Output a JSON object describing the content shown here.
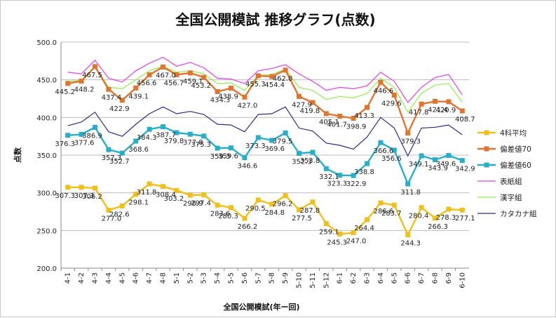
{
  "chart_data": {
    "type": "line",
    "title": "全国公開模試 推移グラフ(点数)",
    "xlabel": "全国公開模試(年ー回)",
    "ylabel": "点数",
    "ylim": [
      200,
      500
    ],
    "yticks": [
      "200.0",
      "250.0",
      "300.0",
      "350.0",
      "400.0",
      "450.0",
      "500.0"
    ],
    "grid": true,
    "legend_position": "right",
    "categories": [
      "4-1",
      "4-2",
      "4-3",
      "4-4",
      "4-5",
      "4-6",
      "4-7",
      "4-8",
      "5-1",
      "5-2",
      "5-3",
      "5-4",
      "5-5",
      "5-6",
      "5-7",
      "5-8",
      "5-9",
      "5-10",
      "5-11",
      "5-12",
      "6-1",
      "6-2",
      "6-3",
      "6-4",
      "6-5",
      "6-6",
      "6-7",
      "6-8",
      "6-9",
      "6-10"
    ],
    "series": [
      {
        "name": "4科平均",
        "color": "#f2bf1a",
        "marker": "square",
        "labels": true,
        "values": [
          307.3,
          307.3,
          306.2,
          277.0,
          282.6,
          298.1,
          311.8,
          308.4,
          303.2,
          296.9,
          297.4,
          283.6,
          280.3,
          266.2,
          290.5,
          284.8,
          296.2,
          277.5,
          287.8,
          259.1,
          245.3,
          247.0,
          264.4,
          286.6,
          283.7,
          244.3,
          280.4,
          266.3,
          278.3,
          277.1
        ],
        "label_text": [
          "307.3",
          "307.3",
          "306.2",
          "277.0",
          "282.6",
          "298.1",
          "311.8",
          "308.4",
          "303.2",
          "296.9",
          "297.4",
          "283.6",
          "280.3",
          "266.2",
          "290.5",
          "284.8",
          "296.2",
          "277.5",
          "287.8",
          "259.1",
          "245.3",
          "247.0",
          "264.4",
          "286.6",
          "283.7",
          "244.3",
          "280.4",
          "266.3",
          "278.3",
          "277.1"
        ]
      },
      {
        "name": "偏差値70",
        "color": "#e2742e",
        "marker": "square",
        "labels": true,
        "values": [
          445.2,
          448.2,
          467.5,
          437.4,
          422.9,
          439.1,
          456.6,
          467.0,
          456.7,
          459.1,
          453.2,
          434.3,
          438.9,
          427.0,
          455.3,
          454.4,
          462.8,
          427.9,
          419.8,
          405.1,
          401.7,
          398.9,
          413.3,
          446.6,
          429.6,
          379.3,
          417.8,
          421.4,
          420.9,
          408.7
        ],
        "label_text": [
          "445.2",
          "448.2",
          "467.5",
          "437.4",
          "422.9",
          "439.1",
          "456.6",
          "467.0",
          "456.7",
          "459.1",
          "453.2",
          "434.3",
          "438.9",
          "427.0",
          "455.3",
          "454.4",
          "462.8",
          "427.9",
          "419.8",
          "405.1",
          "401.7",
          "398.9",
          "413.3",
          "446.6",
          "429.6",
          "379.3",
          "417.8",
          "421.4",
          "420.9",
          "408.7"
        ]
      },
      {
        "name": "偏差値60",
        "color": "#27aecb",
        "marker": "square",
        "labels": true,
        "values": [
          376.3,
          377.6,
          386.9,
          357.3,
          352.7,
          368.6,
          384.3,
          387.7,
          379.8,
          377.8,
          375.3,
          359.3,
          359.6,
          346.6,
          373.3,
          369.6,
          379.5,
          352.3,
          353.8,
          332.1,
          323.3,
          322.9,
          338.8,
          366.6,
          356.6,
          311.8,
          349.1,
          343.9,
          349.6,
          342.9
        ],
        "label_text": [
          "376.3",
          "377.6",
          "386.9",
          "357.3",
          "352.7",
          "368.6",
          "384.3",
          "387.7",
          "379.8",
          "377.8",
          "375.3",
          "359.3",
          "359.6",
          "346.6",
          "373.3",
          "369.6",
          "379.5",
          "352.3",
          "353.8",
          "332.1",
          "323.3",
          "322.9",
          "338.8",
          "366.6",
          "356.6",
          "311.8",
          "349.1",
          "343.9",
          "349.6",
          "342.9"
        ]
      },
      {
        "name": "表紙組",
        "color": "#e83ee8",
        "marker": "none",
        "labels": false,
        "values": [
          460,
          458,
          476,
          452,
          447,
          462,
          472,
          480,
          468,
          473,
          466,
          452,
          451,
          445,
          462,
          465,
          470,
          458,
          448,
          436,
          440,
          438,
          442,
          460,
          448,
          420,
          440,
          453,
          457,
          430
        ]
      },
      {
        "name": "漢字組",
        "color": "#8ef04a",
        "marker": "none",
        "labels": false,
        "values": [
          448,
          449,
          468,
          440,
          438,
          450,
          462,
          468,
          460,
          462,
          458,
          445,
          446,
          436,
          456,
          457,
          464,
          440,
          436,
          424,
          428,
          426,
          432,
          452,
          440,
          407,
          432,
          443,
          445,
          420
        ]
      },
      {
        "name": "カタカナ組",
        "color": "#2b2b8f",
        "marker": "none",
        "labels": false,
        "values": [
          389,
          394,
          407,
          381,
          375,
          391,
          405,
          414,
          405,
          408,
          404,
          391,
          390,
          381,
          404,
          405,
          414,
          386,
          382,
          366,
          363,
          358,
          374,
          400,
          386,
          349,
          386,
          387,
          390,
          377
        ]
      }
    ]
  }
}
